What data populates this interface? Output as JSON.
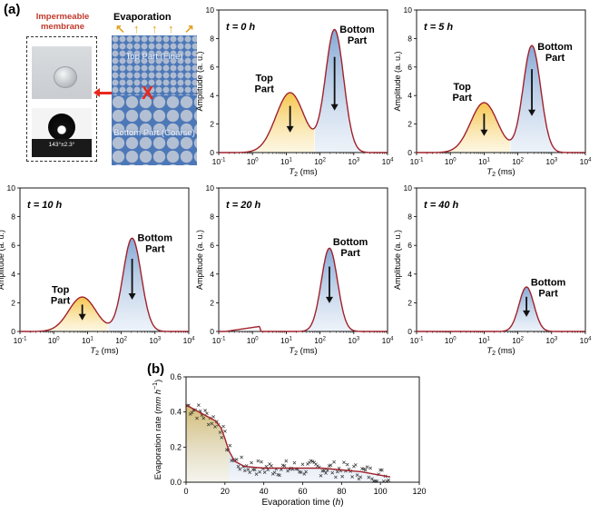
{
  "panel_labels": {
    "a": "(a)",
    "b": "(b)"
  },
  "schematic": {
    "membrane_title": "Impermeable membrane",
    "contact_angle": "143°±2.3°",
    "evaporation_label": "Evaporation",
    "top_part_label": "Top Part (Fine)",
    "bottom_part_label": "Bottom Part (Coarse)",
    "x_mark": "X",
    "colors": {
      "soil": "#4d78b8",
      "membrane_title": "#c0392b",
      "cross": "#e8281c",
      "arrows": "#e0a21f"
    }
  },
  "chart_data": [
    {
      "type": "line",
      "id": "t0",
      "title": "t = 0 h",
      "xlabel": "T2 (ms)",
      "ylabel": "Amplitude (a. u.)",
      "xscale": "log",
      "xlim": [
        0.1,
        10000
      ],
      "ylim": [
        0,
        10
      ],
      "xticks": [
        "10^-1",
        "10^0",
        "10^1",
        "10^2",
        "10^3",
        "10^4"
      ],
      "yticks": [
        0,
        2,
        4,
        6,
        8,
        10
      ],
      "peaks": [
        {
          "name": "Top Part",
          "center_ms": 13,
          "height": 4.2,
          "width_decades": 0.42
        },
        {
          "name": "Bottom Part",
          "center_ms": 270,
          "height": 8.6,
          "width_decades": 0.27
        }
      ],
      "split_ms": 70,
      "annotations": [
        "Top Part",
        "Bottom Part"
      ],
      "colors": {
        "line": "#a0212b",
        "top_fill": "#f5c242",
        "bottom_fill": "#7fa4d3"
      }
    },
    {
      "type": "line",
      "id": "t5",
      "title": "t = 5 h",
      "xlabel": "T2 (ms)",
      "ylabel": "Amplitude (a. u.)",
      "xscale": "log",
      "xlim": [
        0.1,
        10000
      ],
      "ylim": [
        0,
        10
      ],
      "xticks": [
        "10^-1",
        "10^0",
        "10^1",
        "10^2",
        "10^3",
        "10^4"
      ],
      "yticks": [
        0,
        2,
        4,
        6,
        8,
        10
      ],
      "peaks": [
        {
          "name": "Top Part",
          "center_ms": 10,
          "height": 3.5,
          "width_decades": 0.4
        },
        {
          "name": "Bottom Part",
          "center_ms": 260,
          "height": 7.5,
          "width_decades": 0.26
        }
      ],
      "split_ms": 60,
      "annotations": [
        "Top Part",
        "Bottom Part"
      ],
      "colors": {
        "line": "#a0212b",
        "top_fill": "#f5c242",
        "bottom_fill": "#7fa4d3"
      }
    },
    {
      "type": "line",
      "id": "t10",
      "title": "t = 10 h",
      "xlabel": "T2 (ms)",
      "ylabel": "Amplitude (a. u.)",
      "xscale": "log",
      "xlim": [
        0.1,
        10000
      ],
      "ylim": [
        0,
        10
      ],
      "xticks": [
        "10^-1",
        "10^0",
        "10^1",
        "10^2",
        "10^3",
        "10^4"
      ],
      "yticks": [
        0,
        2,
        4,
        6,
        8,
        10
      ],
      "peaks": [
        {
          "name": "Top Part",
          "center_ms": 7,
          "height": 2.4,
          "width_decades": 0.4
        },
        {
          "name": "Bottom Part",
          "center_ms": 210,
          "height": 6.5,
          "width_decades": 0.27
        }
      ],
      "split_ms": 40,
      "annotations": [
        "Top Part",
        "Bottom Part"
      ],
      "colors": {
        "line": "#a0212b",
        "top_fill": "#f5c242",
        "bottom_fill": "#7fa4d3"
      }
    },
    {
      "type": "line",
      "id": "t20",
      "title": "t = 20 h",
      "xlabel": "T2 (ms)",
      "ylabel": "Amplitude (a. u.)",
      "xscale": "log",
      "xlim": [
        0.1,
        10000
      ],
      "ylim": [
        0,
        10
      ],
      "xticks": [
        "10^-1",
        "10^0",
        "10^1",
        "10^2",
        "10^3",
        "10^4"
      ],
      "yticks": [
        0,
        2,
        4,
        6,
        8,
        10
      ],
      "peaks": [
        {
          "name": "Bottom Part",
          "center_ms": 190,
          "height": 5.8,
          "width_decades": 0.24
        }
      ],
      "small_bump": {
        "center_ms": 1.6,
        "height": 0.35
      },
      "annotations": [
        "Bottom Part"
      ],
      "colors": {
        "line": "#a0212b",
        "top_fill": "#f5c242",
        "bottom_fill": "#7fa4d3"
      }
    },
    {
      "type": "line",
      "id": "t40",
      "title": "t = 40 h",
      "xlabel": "T2 (ms)",
      "ylabel": "Amplitude (a. u.)",
      "xscale": "log",
      "xlim": [
        0.1,
        10000
      ],
      "ylim": [
        0,
        10
      ],
      "xticks": [
        "10^-1",
        "10^0",
        "10^1",
        "10^2",
        "10^3",
        "10^4"
      ],
      "yticks": [
        0,
        2,
        4,
        6,
        8,
        10
      ],
      "peaks": [
        {
          "name": "Bottom Part",
          "center_ms": 180,
          "height": 3.1,
          "width_decades": 0.22
        }
      ],
      "annotations": [
        "Bottom Part"
      ],
      "colors": {
        "line": "#a0212b",
        "top_fill": "#f5c242",
        "bottom_fill": "#7fa4d3"
      }
    },
    {
      "type": "scatter",
      "id": "evap",
      "title": "",
      "xlabel": "Evaporation time (h)",
      "ylabel": "Evaporation rate (mm h^-1)",
      "xlim": [
        0,
        120
      ],
      "ylim": [
        0,
        0.6
      ],
      "xticks": [
        0,
        20,
        40,
        60,
        80,
        100,
        120
      ],
      "yticks": [
        0.0,
        0.2,
        0.4,
        0.6
      ],
      "trend": {
        "x": [
          0,
          5,
          10,
          15,
          18,
          20,
          22,
          25,
          30,
          40,
          50,
          60,
          70,
          80,
          90,
          100,
          105
        ],
        "y": [
          0.44,
          0.41,
          0.38,
          0.35,
          0.31,
          0.25,
          0.18,
          0.12,
          0.09,
          0.08,
          0.08,
          0.08,
          0.08,
          0.07,
          0.06,
          0.04,
          0.03
        ]
      },
      "yellow_region_end_h": 22,
      "colors": {
        "trend": "#a0212b",
        "marker": "#333333",
        "top_fill": "#f5c242",
        "bottom_fill": "#7fa4d3"
      }
    }
  ]
}
